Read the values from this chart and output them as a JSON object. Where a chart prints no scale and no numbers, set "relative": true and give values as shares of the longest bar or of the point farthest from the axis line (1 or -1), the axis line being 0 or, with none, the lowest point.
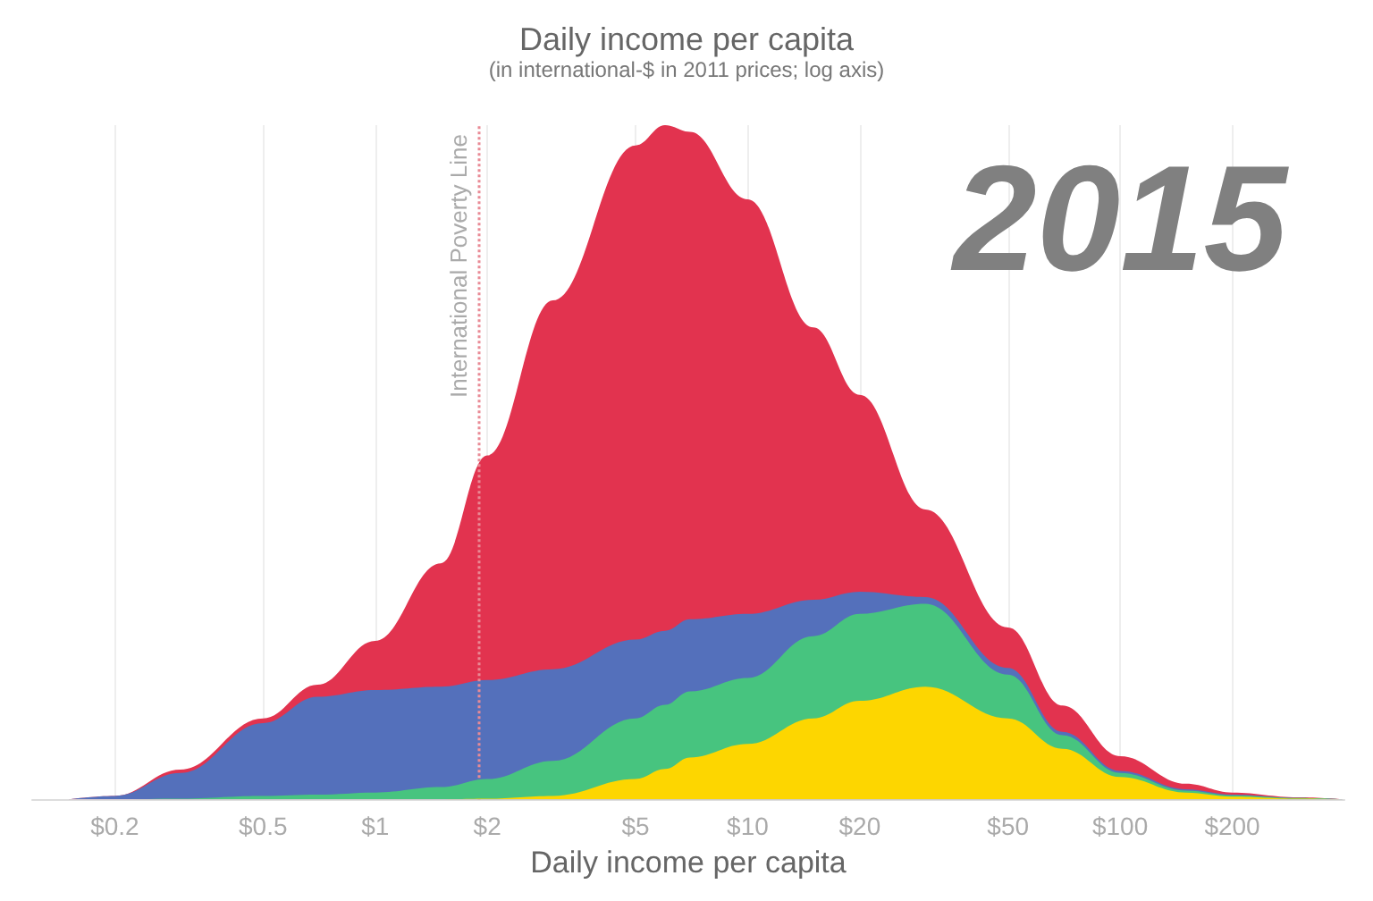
{
  "chart_data": {
    "type": "area",
    "title": "Daily income per capita",
    "subtitle": "(in international-$ in 2011 prices; log axis)",
    "xlabel": "Daily income per capita",
    "annotations": [
      "2015"
    ],
    "x": [
      0.15,
      0.2,
      0.3,
      0.5,
      0.7,
      1,
      1.5,
      2,
      3,
      5,
      6,
      7,
      10,
      15,
      20,
      30,
      50,
      70,
      100,
      150,
      200,
      300,
      400
    ],
    "stacked": true,
    "relative": true,
    "log": "x",
    "grid": "x",
    "xlim": [
      0.12,
      400
    ],
    "xticks": [
      {
        "value": 0.2,
        "label": "$0.2"
      },
      {
        "value": 0.5,
        "label": "$0.5"
      },
      {
        "value": 1,
        "label": "$1"
      },
      {
        "value": 2,
        "label": "$2"
      },
      {
        "value": 5,
        "label": "$5"
      },
      {
        "value": 10,
        "label": "$10"
      },
      {
        "value": 20,
        "label": "$20"
      },
      {
        "value": 50,
        "label": "$50"
      },
      {
        "value": 100,
        "label": "$100"
      },
      {
        "value": 200,
        "label": "$200"
      }
    ],
    "series": [
      {
        "color": "#fdd600",
        "values": [
          0,
          0,
          0,
          0,
          0,
          0,
          0,
          0.001,
          0.005,
          0.03,
          0.045,
          0.062,
          0.082,
          0.12,
          0.146,
          0.167,
          0.12,
          0.075,
          0.033,
          0.01,
          0.004,
          0.001,
          0
        ]
      },
      {
        "color": "#47c47f",
        "values": [
          0,
          0,
          0.001,
          0.005,
          0.007,
          0.01,
          0.018,
          0.029,
          0.052,
          0.09,
          0.095,
          0.098,
          0.098,
          0.122,
          0.129,
          0.123,
          0.065,
          0.02,
          0.006,
          0.003,
          0.002,
          0.001,
          0
        ]
      },
      {
        "color": "#5470bb",
        "values": [
          0,
          0.005,
          0.038,
          0.108,
          0.145,
          0.152,
          0.149,
          0.147,
          0.136,
          0.117,
          0.11,
          0.107,
          0.095,
          0.054,
          0.033,
          0.01,
          0.01,
          0.005,
          0.003,
          0.002,
          0.001,
          0,
          0
        ]
      },
      {
        "color": "#e2334f",
        "values": [
          0,
          0,
          0.005,
          0.007,
          0.018,
          0.073,
          0.183,
          0.333,
          0.547,
          0.733,
          0.75,
          0.723,
          0.615,
          0.404,
          0.292,
          0.13,
          0.06,
          0.039,
          0.022,
          0.008,
          0.003,
          0.001,
          0
        ]
      }
    ],
    "ref_lines": [
      {
        "axis": "x",
        "value": 1.9,
        "label": "International Poverty Line",
        "color": "#e98a95",
        "line_style": "dotted"
      }
    ]
  }
}
